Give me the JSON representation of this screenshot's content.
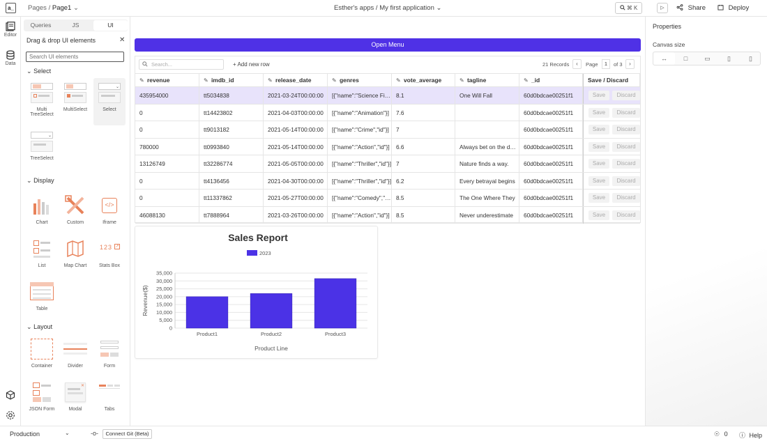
{
  "topbar": {
    "logo": "a_",
    "breadcrumb_pages": "Pages",
    "breadcrumb_sep": "/",
    "breadcrumb_page": "Page1",
    "app_workspace": "Esther's apps",
    "app_sep": "/",
    "app_name": "My first application",
    "shortcut": "⌘ K",
    "share_label": "Share",
    "deploy_label": "Deploy"
  },
  "rail": {
    "editor_label": "Editor",
    "data_label": "Data"
  },
  "pane": {
    "tabs": [
      "Queries",
      "JS",
      "UI"
    ],
    "title": "Drag & drop UI elements",
    "search_placeholder": "Search UI elements",
    "sections": {
      "select": "Select",
      "display": "Display",
      "layout": "Layout"
    },
    "select_widgets": [
      "Multi TreeSelect",
      "MultiSelect",
      "Select",
      "TreeSelect"
    ],
    "display_widgets": [
      "Chart",
      "Custom",
      "Iframe",
      "List",
      "Map Chart",
      "Stats Box",
      "Table"
    ],
    "layout_widgets": [
      "Container",
      "Divider",
      "Form",
      "JSON Form",
      "Modal",
      "Tabs"
    ],
    "stats_box_digits": "123"
  },
  "canvas": {
    "menu_button": "Open Menu",
    "table": {
      "search_placeholder": "Search...",
      "add_row": "Add new row",
      "records": "21 Records",
      "page_label": "Page",
      "page_number": "1",
      "page_of": "of 3",
      "columns": [
        "revenue",
        "imdb_id",
        "release_date",
        "genres",
        "vote_average",
        "tagline",
        "_id"
      ],
      "action_column": "Save / Discard",
      "save_label": "Save",
      "discard_label": "Discard",
      "rows": [
        [
          "435954000",
          "tt5034838",
          "2021-03-24T00:00:00",
          "[{\"name\":\"Science Fiction\"}]",
          "8.1",
          "One Will Fall",
          "60d0bdcae00251f1"
        ],
        [
          "0",
          "tt14423802",
          "2021-04-03T00:00:00",
          "[{\"name\":\"Animation\"}]",
          "7.6",
          "",
          "60d0bdcae00251f1"
        ],
        [
          "0",
          "tt9013182",
          "2021-05-14T00:00:00",
          "[{\"name\":\"Crime\",\"id\"}]",
          "7",
          "",
          "60d0bdcae00251f1"
        ],
        [
          "780000",
          "tt0993840",
          "2021-05-14T00:00:00",
          "[{\"name\":\"Action\",\"id\"}]",
          "6.6",
          "Always bet on the dead",
          "60d0bdcae00251f1"
        ],
        [
          "13126749",
          "tt32286774",
          "2021-05-05T00:00:00",
          "[{\"name\":\"Thriller\",\"id\"}]",
          "7",
          "Nature finds a way.",
          "60d0bdcae00251f1"
        ],
        [
          "0",
          "tt4136456",
          "2021-04-30T00:00:00",
          "[{\"name\":\"Thriller\",\"id\"}]",
          "6.2",
          "Every betrayal begins",
          "60d0bdcae00251f1"
        ],
        [
          "0",
          "tt11337862",
          "2021-05-27T00:00:00",
          "[{\"name\":\"Comedy\",\"id\"}]",
          "8.5",
          "The One Where They",
          "60d0bdcae00251f1"
        ],
        [
          "46088130",
          "tt7888964",
          "2021-03-26T00:00:00",
          "[{\"name\":\"Action\",\"id\"}]",
          "8.5",
          "Never underestimate",
          "60d0bdcae00251f1"
        ]
      ]
    }
  },
  "chart_data": {
    "type": "bar",
    "title": "Sales Report",
    "categories": [
      "Product1",
      "Product2",
      "Product3"
    ],
    "series": [
      {
        "name": "2023",
        "values": [
          20000,
          22000,
          31500
        ]
      }
    ],
    "xlabel": "Product Line",
    "ylabel": "Revenue($)",
    "ylim": [
      0,
      35000
    ],
    "yticks": [
      0,
      5000,
      10000,
      15000,
      20000,
      25000,
      30000,
      35000
    ],
    "ytick_labels": [
      "0",
      "5,000",
      "10,000",
      "15,000",
      "20,000",
      "25,000",
      "30,000",
      "35,000"
    ],
    "grid": true,
    "legend": "top",
    "color": "#4b32e6"
  },
  "properties": {
    "title": "Properties",
    "canvas_size_label": "Canvas size"
  },
  "bottombar": {
    "environment": "Production",
    "git_button": "Connect Git (Beta)",
    "error_count": "0",
    "help_label": "Help"
  },
  "colors": {
    "accent": "#4f31e6",
    "selected_row": "#e8e3fb",
    "widget_orange": "#e8825a"
  }
}
